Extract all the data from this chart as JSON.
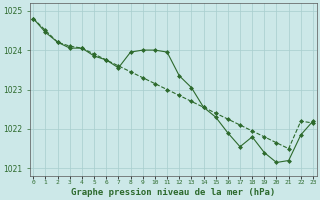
{
  "title": "Graphe pression niveau de la mer (hPa)",
  "xlabel_hours": [
    0,
    1,
    2,
    3,
    4,
    5,
    6,
    7,
    8,
    9,
    10,
    11,
    12,
    13,
    14,
    15,
    16,
    17,
    18,
    19,
    20,
    21,
    22,
    23
  ],
  "line_smooth": [
    1024.8,
    1024.5,
    1024.2,
    1024.1,
    1024.05,
    1023.9,
    1023.75,
    1023.6,
    1023.45,
    1023.3,
    1023.15,
    1023.0,
    1022.85,
    1022.7,
    1022.55,
    1022.4,
    1022.25,
    1022.1,
    1021.95,
    1021.8,
    1021.65,
    1021.5,
    1022.2,
    1022.15
  ],
  "line_jagged": [
    1024.8,
    1024.45,
    1024.2,
    1024.05,
    1024.05,
    1023.85,
    1023.75,
    1023.55,
    1023.95,
    1024.0,
    1024.0,
    1023.95,
    1023.35,
    1023.05,
    1022.55,
    1022.3,
    1021.9,
    1021.55,
    1021.8,
    1021.4,
    1021.15,
    1021.2,
    1021.85,
    1022.2
  ],
  "line_color": "#2d6a2d",
  "bg_color": "#cce8e8",
  "grid_color": "#a8cece",
  "ylim": [
    1020.8,
    1025.2
  ],
  "yticks": [
    1021,
    1022,
    1023,
    1024,
    1025
  ],
  "marker": "D",
  "marker_size": 2.0,
  "line_width": 0.8
}
